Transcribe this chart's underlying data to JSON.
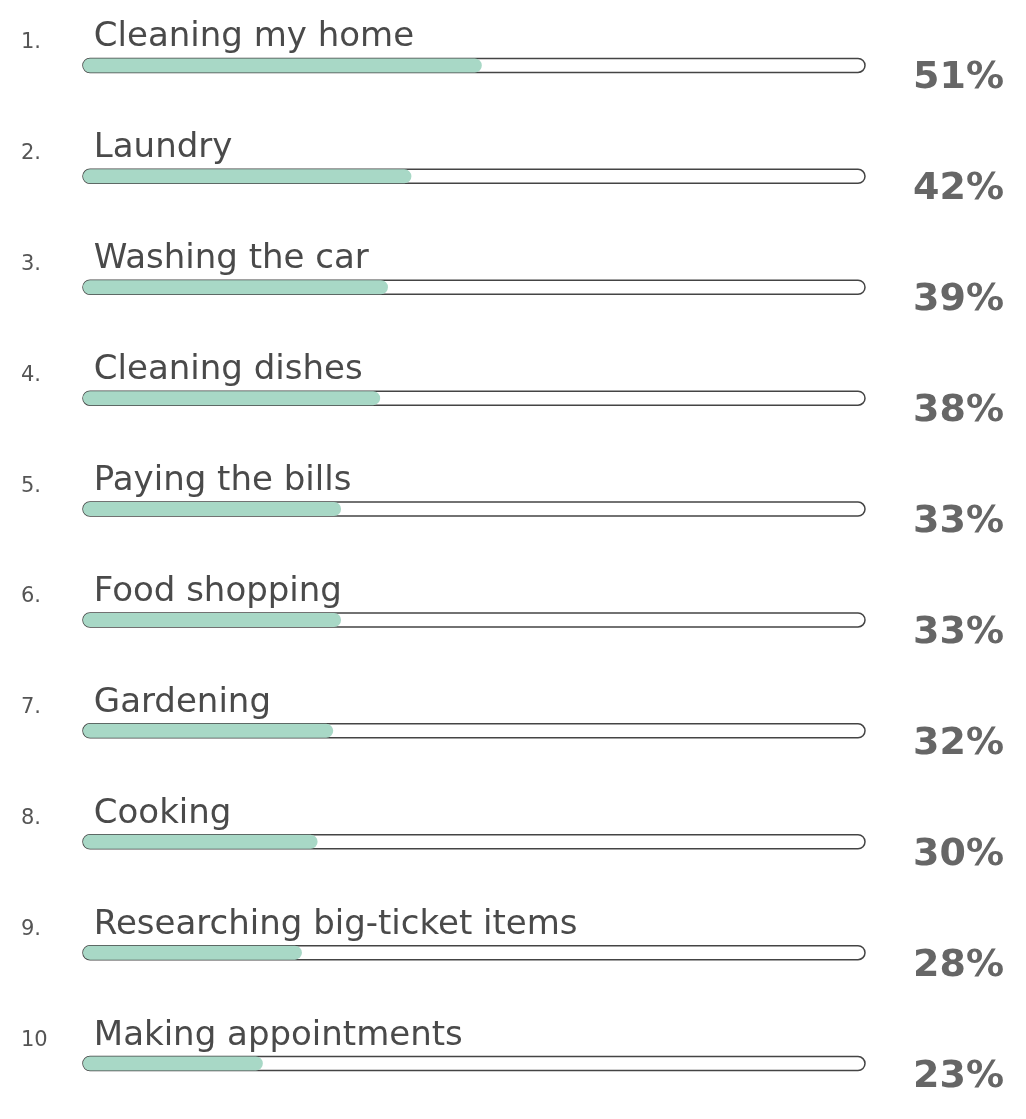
{
  "chart_data": {
    "type": "bar",
    "orientation": "horizontal",
    "categories": [
      "1. Cleaning my home",
      "2. Laundry",
      "3. Washing the car",
      "4. Cleaning dishes",
      "5. Paying the bills",
      "6. Food shopping",
      "7. Gardening",
      "8. Cooking",
      "9. Researching big-ticket items",
      "10 Making appointments"
    ],
    "values": [
      51,
      42,
      39,
      38,
      33,
      33,
      32,
      30,
      28,
      23
    ],
    "color": "#a8d8c6",
    "xlim": [
      0,
      100
    ],
    "value_labels": [
      "51%",
      "42%",
      "39%",
      "38%",
      "33%",
      "33%",
      "32%",
      "30%",
      "28%",
      "23%"
    ],
    "tick_labels": "y"
  }
}
